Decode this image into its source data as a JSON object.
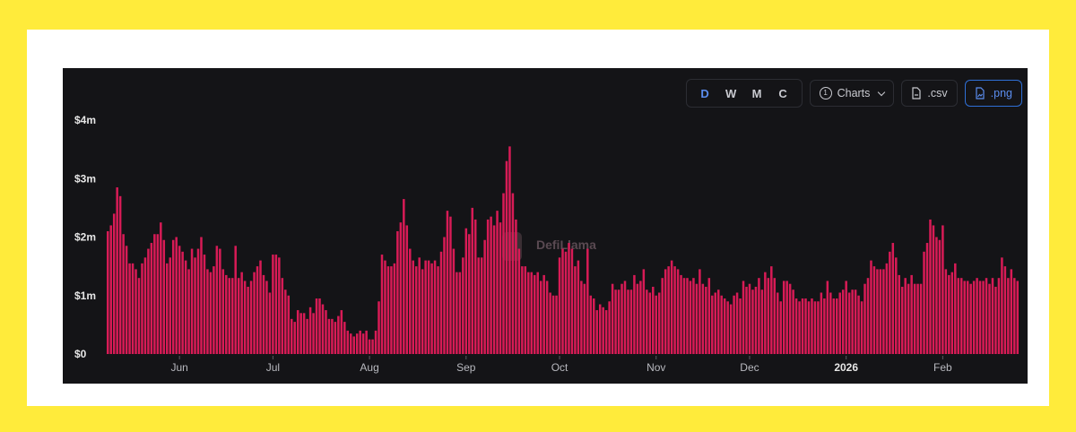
{
  "toolbar": {
    "granularity": [
      "D",
      "W",
      "M",
      "C"
    ],
    "active_granularity": "D",
    "charts_count": "1",
    "charts_label": "Charts",
    "csv_label": ".csv",
    "png_label": ".png"
  },
  "watermark": "DefiLlama",
  "colors": {
    "bar": "#d81b56",
    "accent": "#5b8def",
    "background": "#141417",
    "frame": "#ffeb3b"
  },
  "chart_data": {
    "type": "bar",
    "ylim": [
      0,
      4000000
    ],
    "y_ticks": [
      "$0",
      "$1m",
      "$2m",
      "$3m",
      "$4m"
    ],
    "x_ticks": [
      {
        "label": "Jun",
        "index": 23
      },
      {
        "label": "Jul",
        "index": 53
      },
      {
        "label": "Aug",
        "index": 84
      },
      {
        "label": "Sep",
        "index": 115
      },
      {
        "label": "Oct",
        "index": 145
      },
      {
        "label": "Nov",
        "index": 176
      },
      {
        "label": "Dec",
        "index": 206
      },
      {
        "label": "2026",
        "index": 237,
        "bold": true
      },
      {
        "label": "Feb",
        "index": 268
      }
    ],
    "values": [
      2.1,
      2.2,
      2.4,
      2.85,
      2.7,
      2.05,
      1.85,
      1.55,
      1.55,
      1.45,
      1.3,
      1.55,
      1.65,
      1.8,
      1.9,
      2.05,
      2.05,
      2.25,
      1.95,
      1.55,
      1.65,
      1.95,
      2.0,
      1.85,
      1.75,
      1.6,
      1.45,
      1.8,
      1.65,
      1.8,
      2.0,
      1.7,
      1.45,
      1.4,
      1.5,
      1.85,
      1.8,
      1.45,
      1.35,
      1.3,
      1.3,
      1.85,
      1.3,
      1.4,
      1.25,
      1.15,
      1.25,
      1.4,
      1.5,
      1.6,
      1.35,
      1.25,
      1.05,
      1.7,
      1.7,
      1.65,
      1.3,
      1.1,
      1.0,
      0.6,
      0.55,
      0.75,
      0.7,
      0.7,
      0.6,
      0.8,
      0.7,
      0.95,
      0.95,
      0.85,
      0.75,
      0.6,
      0.6,
      0.55,
      0.65,
      0.75,
      0.55,
      0.4,
      0.35,
      0.3,
      0.35,
      0.4,
      0.35,
      0.4,
      0.25,
      0.25,
      0.4,
      0.9,
      1.7,
      1.6,
      1.5,
      1.5,
      1.55,
      2.1,
      2.25,
      2.65,
      2.2,
      1.8,
      1.6,
      1.5,
      1.65,
      1.45,
      1.6,
      1.6,
      1.55,
      1.6,
      1.5,
      1.75,
      2.0,
      2.45,
      2.35,
      1.8,
      1.4,
      1.4,
      1.65,
      2.15,
      2.05,
      2.5,
      2.3,
      1.65,
      1.65,
      1.95,
      2.3,
      2.35,
      2.2,
      2.45,
      2.25,
      2.75,
      3.3,
      3.55,
      2.75,
      2.3,
      1.8,
      1.5,
      1.5,
      1.4,
      1.4,
      1.35,
      1.4,
      1.25,
      1.35,
      1.25,
      1.05,
      1.0,
      1.0,
      1.65,
      1.8,
      1.75,
      1.9,
      1.8,
      1.5,
      1.6,
      1.25,
      1.2,
      1.8,
      1.0,
      0.95,
      0.75,
      0.85,
      0.8,
      0.75,
      0.9,
      1.2,
      1.1,
      1.1,
      1.2,
      1.25,
      1.1,
      1.1,
      1.35,
      1.2,
      1.25,
      1.45,
      1.1,
      1.05,
      1.15,
      1.0,
      1.05,
      1.3,
      1.45,
      1.5,
      1.6,
      1.5,
      1.45,
      1.35,
      1.3,
      1.3,
      1.25,
      1.3,
      1.2,
      1.45,
      1.2,
      1.15,
      1.3,
      1.0,
      1.05,
      1.1,
      1.0,
      0.95,
      0.9,
      0.85,
      1.0,
      1.05,
      0.95,
      1.25,
      1.15,
      1.2,
      1.1,
      1.15,
      1.3,
      1.1,
      1.4,
      1.3,
      1.5,
      1.3,
      1.05,
      0.9,
      1.25,
      1.25,
      1.2,
      1.1,
      0.95,
      0.9,
      0.95,
      0.95,
      0.9,
      0.95,
      0.9,
      0.9,
      1.05,
      0.95,
      1.25,
      1.05,
      0.95,
      0.95,
      1.05,
      1.1,
      1.25,
      1.05,
      1.1,
      1.1,
      1.0,
      0.9,
      1.2,
      1.3,
      1.6,
      1.5,
      1.45,
      1.45,
      1.45,
      1.55,
      1.75,
      1.9,
      1.65,
      1.35,
      1.15,
      1.3,
      1.2,
      1.35,
      1.2,
      1.2,
      1.2,
      1.75,
      1.9,
      2.3,
      2.2,
      2.0,
      1.95,
      2.2,
      1.45,
      1.35,
      1.4,
      1.55,
      1.3,
      1.3,
      1.25,
      1.25,
      1.2,
      1.25,
      1.3,
      1.25,
      1.25,
      1.3,
      1.2,
      1.3,
      1.15,
      1.3,
      1.65,
      1.5,
      1.3,
      1.45,
      1.3,
      1.25
    ]
  }
}
